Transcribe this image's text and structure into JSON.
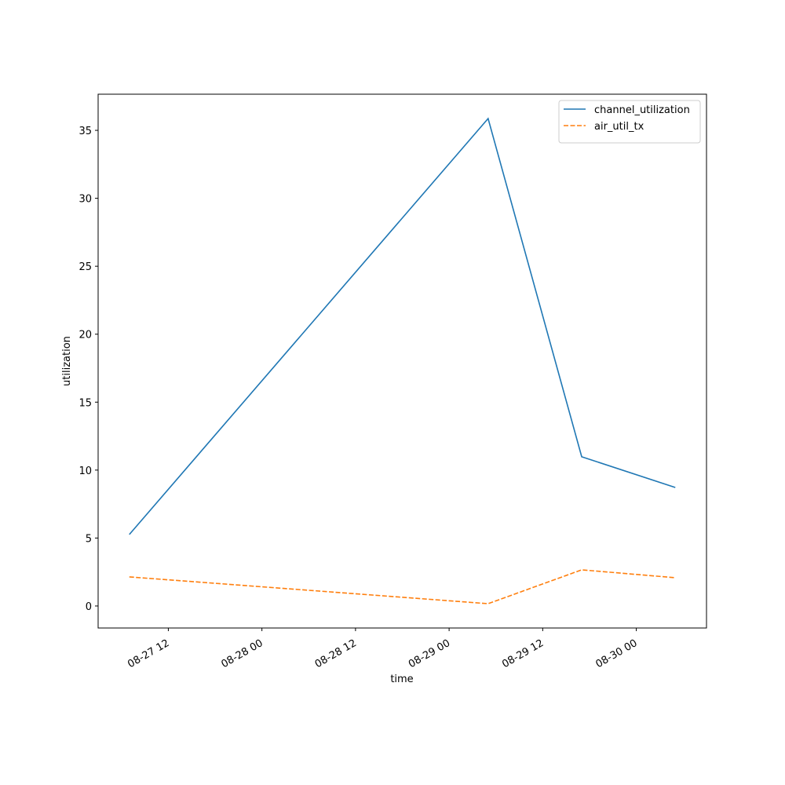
{
  "chart_data": {
    "type": "line",
    "x": [
      "08-27 07",
      "08-29 05",
      "08-29 17",
      "08-30 05"
    ],
    "series": [
      {
        "name": "channel_utilization",
        "color": "#1f77b4",
        "dash": "solid",
        "values": [
          5.26,
          35.87,
          10.98,
          8.72
        ]
      },
      {
        "name": "air_util_tx",
        "color": "#ff7f0e",
        "dash": "dashed",
        "values": [
          2.14,
          0.17,
          2.66,
          2.08
        ]
      }
    ],
    "xlabel": "time",
    "ylabel": "utilization",
    "xlim": [
      "08-27 03",
      "08-30 09"
    ],
    "xticks": [
      "08-27 12",
      "08-28 00",
      "08-28 12",
      "08-29 00",
      "08-29 12",
      "08-30 00"
    ],
    "ylim": [
      -1.62,
      37.66
    ],
    "yticks": [
      0,
      5,
      10,
      15,
      20,
      25,
      30,
      35
    ],
    "legend": "upper right",
    "grid": false
  }
}
